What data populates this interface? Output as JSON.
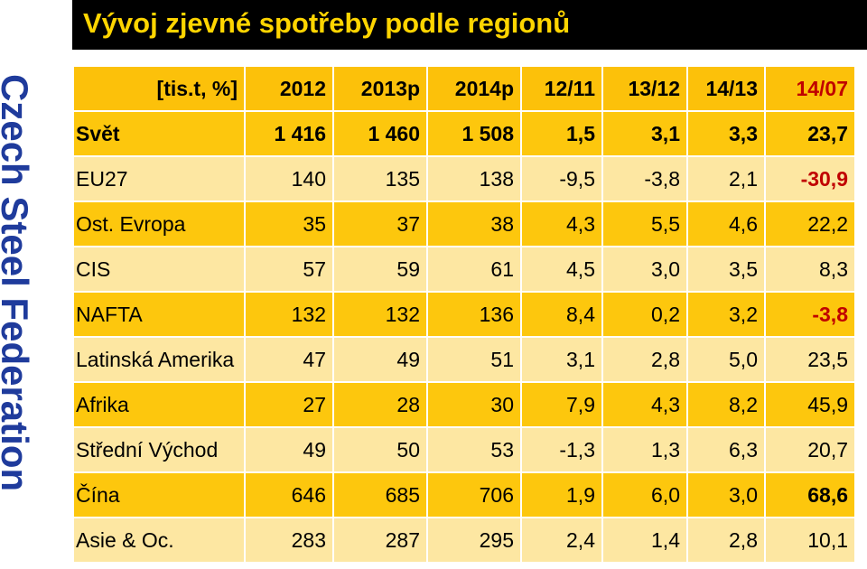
{
  "side_label": "Czech Steel Federation",
  "title": "Vývoj zjevné spotřeby podle regionů",
  "table": {
    "headers": [
      "[tis.t, %]",
      "2012",
      "2013p",
      "2014p",
      "12/11",
      "13/12",
      "14/13",
      "14/07"
    ],
    "rows": [
      {
        "label": "Svět",
        "values": [
          "1 416",
          "1 460",
          "1 508",
          "1,5",
          "3,1",
          "3,3",
          "23,7"
        ]
      },
      {
        "label": "EU27",
        "values": [
          "140",
          "135",
          "138",
          "-9,5",
          "-3,8",
          "2,1",
          "-30,9"
        ]
      },
      {
        "label": "Ost. Evropa",
        "values": [
          "35",
          "37",
          "38",
          "4,3",
          "5,5",
          "4,6",
          "22,2"
        ]
      },
      {
        "label": "CIS",
        "values": [
          "57",
          "59",
          "61",
          "4,5",
          "3,0",
          "3,5",
          "8,3"
        ]
      },
      {
        "label": "NAFTA",
        "values": [
          "132",
          "132",
          "136",
          "8,4",
          "0,2",
          "3,2",
          "-3,8"
        ]
      },
      {
        "label": "Latinská Amerika",
        "values": [
          "47",
          "49",
          "51",
          "3,1",
          "2,8",
          "5,0",
          "23,5"
        ]
      },
      {
        "label": "Afrika",
        "values": [
          "27",
          "28",
          "30",
          "7,9",
          "4,3",
          "8,2",
          "45,9"
        ]
      },
      {
        "label": "Střední Východ",
        "values": [
          "49",
          "50",
          "53",
          "-1,3",
          "1,3",
          "6,3",
          "20,7"
        ]
      },
      {
        "label": "Čína",
        "values": [
          "646",
          "685",
          "706",
          "1,9",
          "6,0",
          "3,0",
          "68,6"
        ]
      },
      {
        "label": "Asie & Oc.",
        "values": [
          "283",
          "287",
          "295",
          "2,4",
          "1,4",
          "2,8",
          "10,1"
        ]
      }
    ]
  },
  "colors": {
    "header_bg": "#000000",
    "title": "#ffd500",
    "side_label": "#1f3b9c",
    "row_dark": "#fdc70d",
    "row_light": "#fde7a2",
    "negative": "#c00000"
  }
}
